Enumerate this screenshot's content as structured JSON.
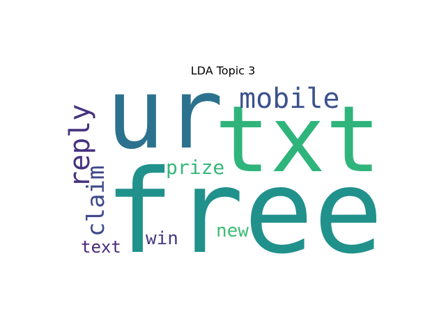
{
  "chart_data": {
    "type": "wordcloud",
    "title": "LDA Topic 3",
    "words": [
      {
        "text": "free",
        "color": "#21918c"
      },
      {
        "text": "txt",
        "color": "#2fb47c"
      },
      {
        "text": "ur",
        "color": "#2c728e"
      },
      {
        "text": "mobile",
        "color": "#3b528b"
      },
      {
        "text": "reply",
        "color": "#46327e"
      },
      {
        "text": "claim",
        "color": "#3e4989"
      },
      {
        "text": "prize",
        "color": "#35b779"
      },
      {
        "text": "new",
        "color": "#3fbc73"
      },
      {
        "text": "win",
        "color": "#443983"
      },
      {
        "text": "text",
        "color": "#482878"
      }
    ]
  }
}
